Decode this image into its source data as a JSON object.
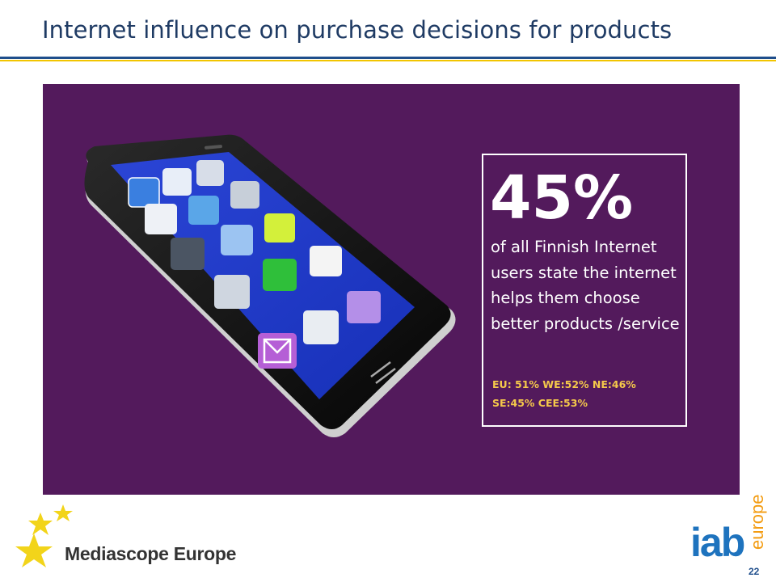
{
  "slide": {
    "title": "Internet influence on purchase decisions for products",
    "page_number": "22"
  },
  "stat": {
    "percent": "45%",
    "description": "of all Finnish Internet users state the internet helps them choose better products /service",
    "regional_line_1": "EU: 51% WE:52% NE:46%",
    "regional_line_2": "SE:45% CEE:53%"
  },
  "footer": {
    "left_logo": "Mediascope Europe",
    "right_logo_main": "iab",
    "right_logo_sub": "europe"
  },
  "colors": {
    "panel": "#531a5c",
    "title": "#1f3b64",
    "accent_yellow": "#f5c94a",
    "rule_blue": "#1f4e8c",
    "rule_yellow": "#f2c500"
  },
  "icons": [
    "smartphone-image",
    "star-icon",
    "phone-app-icons"
  ]
}
